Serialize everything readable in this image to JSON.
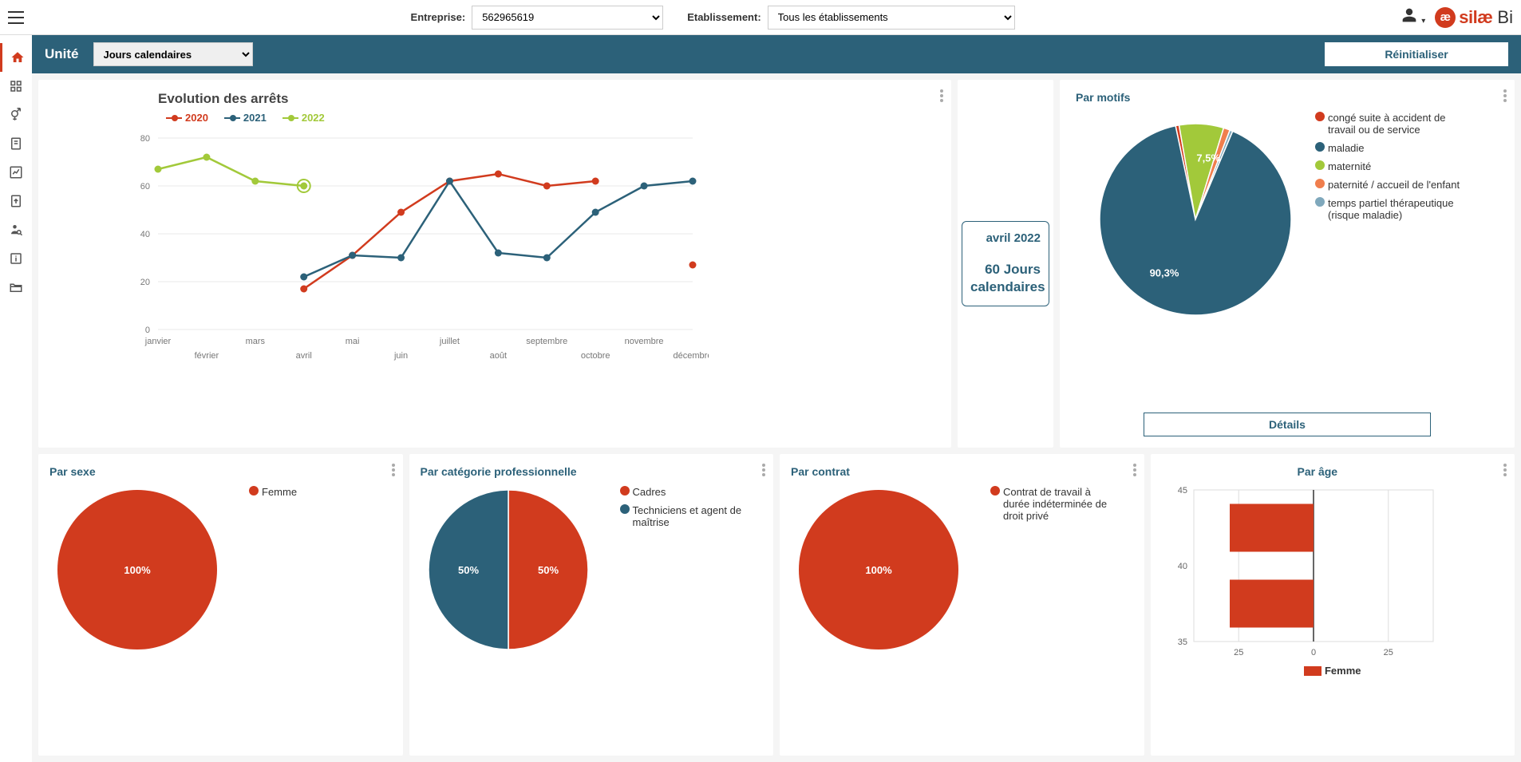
{
  "topbar": {
    "entreprise_label": "Entreprise:",
    "entreprise_value": "562965619",
    "etablissement_label": "Etablissement:",
    "etablissement_value": "Tous les établissements"
  },
  "brand": {
    "bubble": "æ",
    "name1": "silæ",
    "name2": " Bi"
  },
  "unitbar": {
    "label": "Unité",
    "select_value": "Jours calendaires",
    "reset": "Réinitialiser"
  },
  "evo": {
    "title": "Evolution des arrêts",
    "series": [
      {
        "label": "2020",
        "color": "#d13b1e"
      },
      {
        "label": "2021",
        "color": "#2c6179"
      },
      {
        "label": "2022",
        "color": "#a2c93a"
      }
    ],
    "y": {
      "min": 0,
      "max": 80,
      "step": 20,
      "ticks": [
        0,
        20,
        40,
        60,
        80
      ]
    },
    "x_labels_top": [
      "janvier",
      "mars",
      "mai",
      "juillet",
      "septembre",
      "novembre"
    ],
    "x_labels_bot": [
      "février",
      "avril",
      "juin",
      "août",
      "octobre",
      "décembre"
    ],
    "data_2020": [
      null,
      null,
      null,
      17,
      31,
      49,
      62,
      65,
      60,
      62,
      null,
      27
    ],
    "data_2021": [
      null,
      null,
      null,
      22,
      31,
      30,
      62,
      32,
      30,
      49,
      60,
      62
    ],
    "data_2022": [
      67,
      72,
      62,
      60,
      null,
      null,
      null,
      null,
      null,
      null,
      null,
      null
    ],
    "highlight_idx": 3,
    "grid_color": "#e8e8e8",
    "isolated_point": {
      "series": 0,
      "idx": 11,
      "value": 27
    }
  },
  "kpi": {
    "month": "avril 2022",
    "value_line1": "60 Jours",
    "value_line2": "calendaires"
  },
  "motifs": {
    "title": "Par motifs",
    "slices": [
      {
        "label": "congé suite à accident de travail ou de service",
        "color": "#d13b1e",
        "pct": 0.6
      },
      {
        "label": "maladie",
        "color": "#2c6179",
        "pct": 90.3
      },
      {
        "label": "maternité",
        "color": "#a2c93a",
        "pct": 7.5
      },
      {
        "label": "paternité / accueil de l'enfant",
        "color": "#f07e4d",
        "pct": 1.1
      },
      {
        "label": "temps partiel thérapeutique (risque maladie)",
        "color": "#7fa8bc",
        "pct": 0.5
      }
    ],
    "shown_labels": [
      {
        "text": "7,5%",
        "angle_deg": -78
      },
      {
        "text": "90,3%",
        "angle_deg": 120
      }
    ],
    "details": "Détails"
  },
  "sexe": {
    "title": "Par sexe",
    "slices": [
      {
        "label": "Femme",
        "color": "#d13b1e",
        "pct": 100
      }
    ],
    "center_label": "100%"
  },
  "cat": {
    "title": "Par catégorie professionnelle",
    "slices": [
      {
        "label": "Cadres",
        "color": "#d13b1e",
        "pct": 50
      },
      {
        "label": "Techniciens et agent de maîtrise",
        "color": "#2c6179",
        "pct": 50
      }
    ],
    "labels": [
      {
        "text": "50%",
        "x_side": "left"
      },
      {
        "text": "50%",
        "x_side": "right"
      }
    ]
  },
  "contrat": {
    "title": "Par contrat",
    "slices": [
      {
        "label": "Contrat de travail à durée indéterminée de droit privé",
        "color": "#d13b1e",
        "pct": 100
      }
    ],
    "center_label": "100%"
  },
  "age": {
    "title": "Par âge",
    "y_ticks": [
      35,
      40,
      45
    ],
    "x_ticks": [
      -25,
      0,
      25
    ],
    "x_tick_labels": [
      "25",
      "0",
      "25"
    ],
    "bars": [
      {
        "y": 42.5,
        "value": -28,
        "color": "#d13b1e"
      },
      {
        "y": 37.5,
        "value": -28,
        "color": "#d13b1e"
      }
    ],
    "legend": [
      {
        "label": "Femme",
        "color": "#d13b1e"
      }
    ],
    "grid_color": "#ddd"
  },
  "colors": {
    "primary": "#2c6179",
    "accent": "#d13b1e",
    "green": "#a2c93a"
  }
}
